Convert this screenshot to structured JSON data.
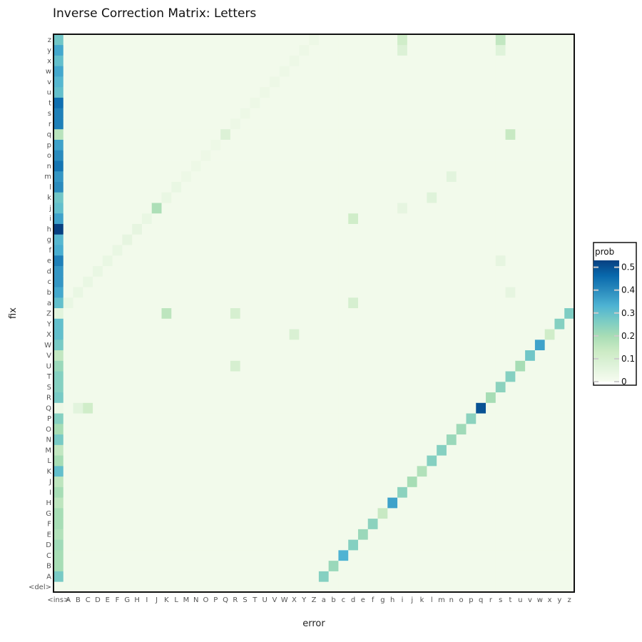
{
  "chart_data": {
    "type": "heatmap",
    "title": "Inverse Correction Matrix: Letters",
    "xlabel": "error",
    "ylabel": "fix",
    "x_categories": [
      "<ins>",
      "A",
      "B",
      "C",
      "D",
      "E",
      "F",
      "G",
      "H",
      "I",
      "J",
      "K",
      "L",
      "M",
      "N",
      "O",
      "P",
      "Q",
      "R",
      "S",
      "T",
      "U",
      "V",
      "W",
      "X",
      "Y",
      "Z",
      "a",
      "b",
      "c",
      "d",
      "e",
      "f",
      "g",
      "h",
      "i",
      "j",
      "k",
      "l",
      "m",
      "n",
      "o",
      "p",
      "q",
      "r",
      "s",
      "t",
      "u",
      "v",
      "w",
      "x",
      "y",
      "z"
    ],
    "y_categories": [
      "<del>",
      "A",
      "B",
      "C",
      "D",
      "E",
      "F",
      "G",
      "H",
      "I",
      "J",
      "K",
      "L",
      "M",
      "N",
      "O",
      "P",
      "Q",
      "R",
      "S",
      "T",
      "U",
      "V",
      "W",
      "X",
      "Y",
      "Z",
      "a",
      "b",
      "c",
      "d",
      "e",
      "f",
      "g",
      "h",
      "i",
      "j",
      "k",
      "l",
      "m",
      "n",
      "o",
      "p",
      "q",
      "r",
      "s",
      "t",
      "u",
      "v",
      "w",
      "x",
      "y",
      "z"
    ],
    "cell_values": [
      {
        "x": "<ins>",
        "y": "A",
        "value": 0.27
      },
      {
        "x": "<ins>",
        "y": "B",
        "value": 0.2
      },
      {
        "x": "<ins>",
        "y": "C",
        "value": 0.2
      },
      {
        "x": "<ins>",
        "y": "D",
        "value": 0.21
      },
      {
        "x": "<ins>",
        "y": "E",
        "value": 0.18
      },
      {
        "x": "<ins>",
        "y": "F",
        "value": 0.2
      },
      {
        "x": "<ins>",
        "y": "G",
        "value": 0.2
      },
      {
        "x": "<ins>",
        "y": "H",
        "value": 0.16
      },
      {
        "x": "<ins>",
        "y": "I",
        "value": 0.2
      },
      {
        "x": "<ins>",
        "y": "J",
        "value": 0.16
      },
      {
        "x": "<ins>",
        "y": "K",
        "value": 0.3
      },
      {
        "x": "<ins>",
        "y": "L",
        "value": 0.2
      },
      {
        "x": "<ins>",
        "y": "M",
        "value": 0.15
      },
      {
        "x": "<ins>",
        "y": "N",
        "value": 0.27
      },
      {
        "x": "<ins>",
        "y": "O",
        "value": 0.2
      },
      {
        "x": "<ins>",
        "y": "P",
        "value": 0.25
      },
      {
        "x": "<ins>",
        "y": "Q",
        "value": 0.03
      },
      {
        "x": "<ins>",
        "y": "R",
        "value": 0.27
      },
      {
        "x": "<ins>",
        "y": "S",
        "value": 0.25
      },
      {
        "x": "<ins>",
        "y": "T",
        "value": 0.25
      },
      {
        "x": "<ins>",
        "y": "U",
        "value": 0.22
      },
      {
        "x": "<ins>",
        "y": "V",
        "value": 0.15
      },
      {
        "x": "<ins>",
        "y": "W",
        "value": 0.27
      },
      {
        "x": "<ins>",
        "y": "X",
        "value": 0.3
      },
      {
        "x": "<ins>",
        "y": "Y",
        "value": 0.3
      },
      {
        "x": "<ins>",
        "y": "Z",
        "value": 0.06
      },
      {
        "x": "<ins>",
        "y": "a",
        "value": 0.3
      },
      {
        "x": "<ins>",
        "y": "b",
        "value": 0.35
      },
      {
        "x": "<ins>",
        "y": "c",
        "value": 0.38
      },
      {
        "x": "<ins>",
        "y": "d",
        "value": 0.38
      },
      {
        "x": "<ins>",
        "y": "e",
        "value": 0.42
      },
      {
        "x": "<ins>",
        "y": "f",
        "value": 0.34
      },
      {
        "x": "<ins>",
        "y": "g",
        "value": 0.32
      },
      {
        "x": "<ins>",
        "y": "h",
        "value": 0.53
      },
      {
        "x": "<ins>",
        "y": "i",
        "value": 0.36
      },
      {
        "x": "<ins>",
        "y": "j",
        "value": 0.3
      },
      {
        "x": "<ins>",
        "y": "k",
        "value": 0.28
      },
      {
        "x": "<ins>",
        "y": "l",
        "value": 0.4
      },
      {
        "x": "<ins>",
        "y": "m",
        "value": 0.38
      },
      {
        "x": "<ins>",
        "y": "n",
        "value": 0.44
      },
      {
        "x": "<ins>",
        "y": "o",
        "value": 0.4
      },
      {
        "x": "<ins>",
        "y": "p",
        "value": 0.36
      },
      {
        "x": "<ins>",
        "y": "q",
        "value": 0.17
      },
      {
        "x": "<ins>",
        "y": "r",
        "value": 0.42
      },
      {
        "x": "<ins>",
        "y": "s",
        "value": 0.42
      },
      {
        "x": "<ins>",
        "y": "t",
        "value": 0.45
      },
      {
        "x": "<ins>",
        "y": "u",
        "value": 0.3
      },
      {
        "x": "<ins>",
        "y": "v",
        "value": 0.32
      },
      {
        "x": "<ins>",
        "y": "w",
        "value": 0.35
      },
      {
        "x": "<ins>",
        "y": "x",
        "value": 0.3
      },
      {
        "x": "<ins>",
        "y": "y",
        "value": 0.35
      },
      {
        "x": "<ins>",
        "y": "z",
        "value": 0.28
      },
      {
        "x": "a",
        "y": "A",
        "value": 0.25
      },
      {
        "x": "b",
        "y": "B",
        "value": 0.22
      },
      {
        "x": "c",
        "y": "C",
        "value": 0.33
      },
      {
        "x": "d",
        "y": "D",
        "value": 0.25
      },
      {
        "x": "e",
        "y": "E",
        "value": 0.22
      },
      {
        "x": "f",
        "y": "F",
        "value": 0.24
      },
      {
        "x": "g",
        "y": "G",
        "value": 0.14
      },
      {
        "x": "h",
        "y": "H",
        "value": 0.36
      },
      {
        "x": "i",
        "y": "I",
        "value": 0.24
      },
      {
        "x": "j",
        "y": "J",
        "value": 0.2
      },
      {
        "x": "k",
        "y": "K",
        "value": 0.18
      },
      {
        "x": "l",
        "y": "L",
        "value": 0.25
      },
      {
        "x": "m",
        "y": "M",
        "value": 0.25
      },
      {
        "x": "n",
        "y": "N",
        "value": 0.22
      },
      {
        "x": "o",
        "y": "O",
        "value": 0.21
      },
      {
        "x": "p",
        "y": "P",
        "value": 0.24
      },
      {
        "x": "q",
        "y": "Q",
        "value": 0.5
      },
      {
        "x": "r",
        "y": "R",
        "value": 0.2
      },
      {
        "x": "s",
        "y": "S",
        "value": 0.24
      },
      {
        "x": "t",
        "y": "T",
        "value": 0.25
      },
      {
        "x": "u",
        "y": "U",
        "value": 0.2
      },
      {
        "x": "v",
        "y": "V",
        "value": 0.28
      },
      {
        "x": "w",
        "y": "W",
        "value": 0.36
      },
      {
        "x": "x",
        "y": "X",
        "value": 0.12
      },
      {
        "x": "y",
        "y": "Y",
        "value": 0.25
      },
      {
        "x": "z",
        "y": "Z",
        "value": 0.26
      },
      {
        "x": "A",
        "y": "a",
        "value": 0.04
      },
      {
        "x": "B",
        "y": "b",
        "value": 0.04
      },
      {
        "x": "C",
        "y": "c",
        "value": 0.04
      },
      {
        "x": "D",
        "y": "d",
        "value": 0.04
      },
      {
        "x": "E",
        "y": "e",
        "value": 0.04
      },
      {
        "x": "F",
        "y": "f",
        "value": 0.04
      },
      {
        "x": "G",
        "y": "g",
        "value": 0.05
      },
      {
        "x": "H",
        "y": "h",
        "value": 0.05
      },
      {
        "x": "I",
        "y": "i",
        "value": 0.04
      },
      {
        "x": "J",
        "y": "j",
        "value": 0.19
      },
      {
        "x": "K",
        "y": "k",
        "value": 0.04
      },
      {
        "x": "L",
        "y": "l",
        "value": 0.04
      },
      {
        "x": "M",
        "y": "m",
        "value": 0.03
      },
      {
        "x": "N",
        "y": "n",
        "value": 0.03
      },
      {
        "x": "O",
        "y": "o",
        "value": 0.03
      },
      {
        "x": "P",
        "y": "p",
        "value": 0.03
      },
      {
        "x": "Q",
        "y": "q",
        "value": 0.08
      },
      {
        "x": "R",
        "y": "r",
        "value": 0.03
      },
      {
        "x": "S",
        "y": "s",
        "value": 0.03
      },
      {
        "x": "T",
        "y": "t",
        "value": 0.03
      },
      {
        "x": "U",
        "y": "u",
        "value": 0.03
      },
      {
        "x": "V",
        "y": "v",
        "value": 0.03
      },
      {
        "x": "W",
        "y": "w",
        "value": 0.03
      },
      {
        "x": "X",
        "y": "x",
        "value": 0.03
      },
      {
        "x": "Y",
        "y": "y",
        "value": 0.03
      },
      {
        "x": "Z",
        "y": "z",
        "value": 0.03
      },
      {
        "x": "K",
        "y": "Z",
        "value": 0.16
      },
      {
        "x": "R",
        "y": "Z",
        "value": 0.1
      },
      {
        "x": "C",
        "y": "Q",
        "value": 0.12
      },
      {
        "x": "B",
        "y": "Q",
        "value": 0.06
      },
      {
        "x": "R",
        "y": "U",
        "value": 0.1
      },
      {
        "x": "X",
        "y": "X",
        "value": 0.09
      },
      {
        "x": "i",
        "y": "z",
        "value": 0.12
      },
      {
        "x": "s",
        "y": "z",
        "value": 0.15
      },
      {
        "x": "t",
        "y": "q",
        "value": 0.14
      },
      {
        "x": "d",
        "y": "i",
        "value": 0.12
      },
      {
        "x": "d",
        "y": "a",
        "value": 0.1
      },
      {
        "x": "i",
        "y": "y",
        "value": 0.08
      },
      {
        "x": "s",
        "y": "y",
        "value": 0.07
      },
      {
        "x": "t",
        "y": "b",
        "value": 0.05
      },
      {
        "x": "s",
        "y": "e",
        "value": 0.05
      },
      {
        "x": "i",
        "y": "j",
        "value": 0.05
      },
      {
        "x": "l",
        "y": "k",
        "value": 0.07
      },
      {
        "x": "n",
        "y": "m",
        "value": 0.06
      }
    ],
    "background_value": 0.015,
    "color_scale": {
      "name": "prob",
      "min": 0,
      "max": 0.53,
      "ticks": [
        0,
        0.1,
        0.2,
        0.3,
        0.4,
        0.5
      ],
      "colors": [
        "#f7fcf0",
        "#e0f3db",
        "#ccebc5",
        "#a8ddb5",
        "#7bccc4",
        "#4eb3d3",
        "#2b8cbe",
        "#0868ac",
        "#084081"
      ]
    },
    "legend_position": "right",
    "grid": false
  }
}
